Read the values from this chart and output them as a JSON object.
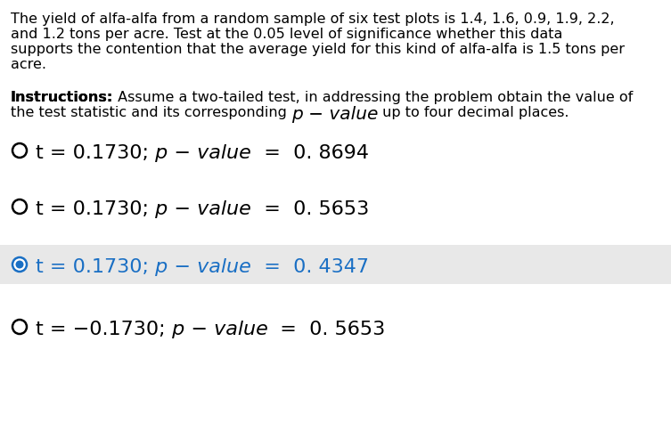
{
  "bg_color": "#ffffff",
  "highlight_color": "#e8e8e8",
  "question_line1": "The yield of alfa-alfa from a random sample of six test plots is 1.4, 1.6, 0.9, 1.9, 2.2,",
  "question_line2": "and 1.2 tons per acre. Test at the 0.05 level of significance whether this data",
  "question_line3": "supports the contention that the average yield for this kind of alfa-alfa is 1.5 tons per",
  "question_line4": "acre.",
  "instr_line1_bold": "Instructions:",
  "instr_line1_rest": " Assume a two-tailed test, in addressing the problem obtain the value of",
  "instr_line2_pre": "the test statistic and its corresponding ",
  "instr_line2_math": "p − value",
  "instr_line2_post": " up to four decimal places.",
  "options": [
    {
      "t_part": "t = 0.1730;",
      "pv_italic": " p − value",
      "pv_rest": "  =  0. 8694",
      "selected": false,
      "highlighted": false
    },
    {
      "t_part": "t = 0.1730;",
      "pv_italic": " p − value",
      "pv_rest": "  =  0. 5653",
      "selected": false,
      "highlighted": false
    },
    {
      "t_part": "t = 0.1730;",
      "pv_italic": " p − value",
      "pv_rest": "  =  0. 4347",
      "selected": true,
      "highlighted": true
    },
    {
      "t_part": "t = −0.1730;",
      "pv_italic": " p − value",
      "pv_rest": "  =  0. 5653",
      "selected": false,
      "highlighted": false
    }
  ],
  "selected_color": "#1a6fc4",
  "text_color": "#000000",
  "option_font_size": 16,
  "question_font_size": 11.5,
  "instructions_font_size": 11.5,
  "math_font_size": 14.5
}
